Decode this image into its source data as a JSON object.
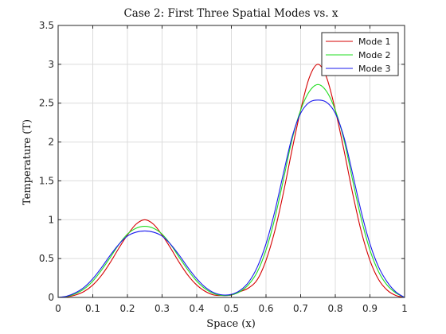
{
  "chart_data": {
    "type": "line",
    "title": "Case 2: First Three Spatial Modes vs. x",
    "xlabel": "Space (x)",
    "ylabel": "Temperature (T)",
    "xlim": [
      0,
      1
    ],
    "ylim": [
      0,
      3.5
    ],
    "xticks": [
      "0",
      "0.1",
      "0.2",
      "0.3",
      "0.4",
      "0.5",
      "0.6",
      "0.7",
      "0.8",
      "0.9",
      "1"
    ],
    "yticks": [
      "0",
      "0.5",
      "1",
      "1.5",
      "2",
      "2.5",
      "3",
      "3.5"
    ],
    "grid": true,
    "legend_position": "top-right",
    "x": [
      0,
      0.025,
      0.05,
      0.075,
      0.1,
      0.125,
      0.15,
      0.175,
      0.2,
      0.225,
      0.25,
      0.275,
      0.3,
      0.325,
      0.35,
      0.375,
      0.4,
      0.425,
      0.45,
      0.475,
      0.5,
      0.525,
      0.55,
      0.575,
      0.6,
      0.625,
      0.65,
      0.675,
      0.7,
      0.725,
      0.75,
      0.775,
      0.8,
      0.825,
      0.85,
      0.875,
      0.9,
      0.925,
      0.95,
      0.975,
      1
    ],
    "series": [
      {
        "name": "Mode 1",
        "color": "#d40000",
        "values": [
          0,
          0.0082,
          0.0309,
          0.0768,
          0.159,
          0.283,
          0.447,
          0.632,
          0.804,
          0.943,
          1.0,
          0.943,
          0.804,
          0.632,
          0.447,
          0.283,
          0.159,
          0.0768,
          0.0309,
          0.0246,
          0.03,
          0.0738,
          0.1227,
          0.23,
          0.477,
          0.849,
          1.341,
          1.896,
          2.412,
          2.829,
          3.0,
          2.829,
          2.412,
          1.896,
          1.341,
          0.849,
          0.477,
          0.23,
          0.0927,
          0.0246,
          0
        ]
      },
      {
        "name": "Mode 2",
        "color": "#22dd22",
        "values": [
          0,
          0.0128,
          0.0476,
          0.109,
          0.21,
          0.35,
          0.512,
          0.68,
          0.815,
          0.89,
          0.915,
          0.89,
          0.815,
          0.68,
          0.512,
          0.35,
          0.21,
          0.109,
          0.0476,
          0.0248,
          0.032,
          0.0745,
          0.166,
          0.33,
          0.61,
          1.01,
          1.51,
          2.03,
          2.41,
          2.65,
          2.74,
          2.65,
          2.41,
          2.03,
          1.51,
          1.01,
          0.61,
          0.33,
          0.156,
          0.0575,
          0
        ]
      },
      {
        "name": "Mode 3",
        "color": "#1a1aee",
        "values": [
          0,
          0.0165,
          0.06,
          0.13,
          0.24,
          0.382,
          0.54,
          0.682,
          0.79,
          0.84,
          0.855,
          0.84,
          0.79,
          0.682,
          0.54,
          0.382,
          0.24,
          0.13,
          0.06,
          0.032,
          0.039,
          0.09,
          0.198,
          0.392,
          0.69,
          1.1,
          1.59,
          2.06,
          2.37,
          2.51,
          2.54,
          2.51,
          2.37,
          2.06,
          1.59,
          1.1,
          0.69,
          0.392,
          0.198,
          0.07,
          0
        ]
      }
    ]
  }
}
